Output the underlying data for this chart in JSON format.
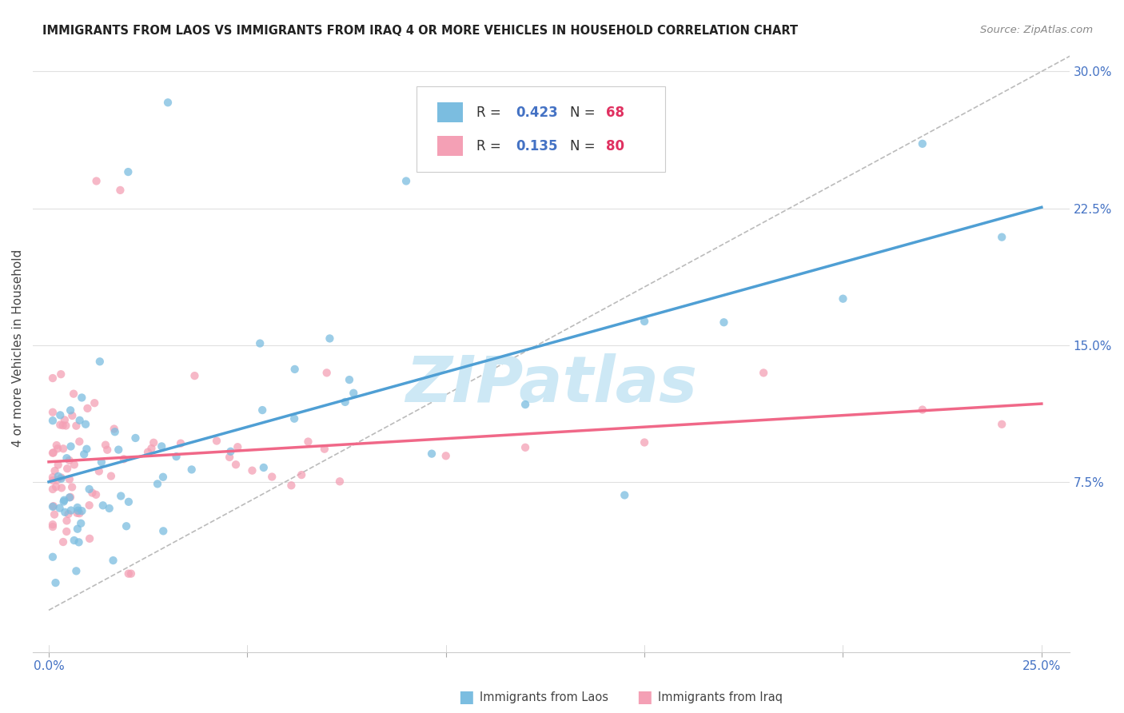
{
  "title": "IMMIGRANTS FROM LAOS VS IMMIGRANTS FROM IRAQ 4 OR MORE VEHICLES IN HOUSEHOLD CORRELATION CHART",
  "source": "Source: ZipAtlas.com",
  "ylabel": "4 or more Vehicles in Household",
  "xlabel_laos": "Immigrants from Laos",
  "xlabel_iraq": "Immigrants from Iraq",
  "xlim_min": 0.0,
  "xlim_max": 0.25,
  "ylim_min": 0.0,
  "ylim_max": 0.31,
  "yticks_right": [
    0.075,
    0.15,
    0.225,
    0.3
  ],
  "ytick_labels_right": [
    "7.5%",
    "15.0%",
    "22.5%",
    "30.0%"
  ],
  "xtick_vals": [
    0.0,
    0.05,
    0.1,
    0.15,
    0.2,
    0.25
  ],
  "xtick_labels": [
    "0.0%",
    "",
    "",
    "",
    "",
    "25.0%"
  ],
  "laos_color": "#7bbde0",
  "iraq_color": "#f4a0b5",
  "laos_line_color": "#4f9fd4",
  "iraq_line_color": "#f06888",
  "dashed_line_color": "#bbbbbb",
  "R_laos": 0.423,
  "N_laos": 68,
  "R_iraq": 0.135,
  "N_iraq": 80,
  "watermark_text": "ZIPatlas",
  "watermark_color": "#cde8f5",
  "background_color": "#ffffff",
  "grid_color": "#e0e0e0",
  "title_color": "#222222",
  "source_color": "#888888",
  "ylabel_color": "#444444",
  "right_tick_color": "#4472c4",
  "bottom_tick_color": "#4472c4",
  "legend_R_color": "#4472c4",
  "legend_N_color": "#e03060"
}
